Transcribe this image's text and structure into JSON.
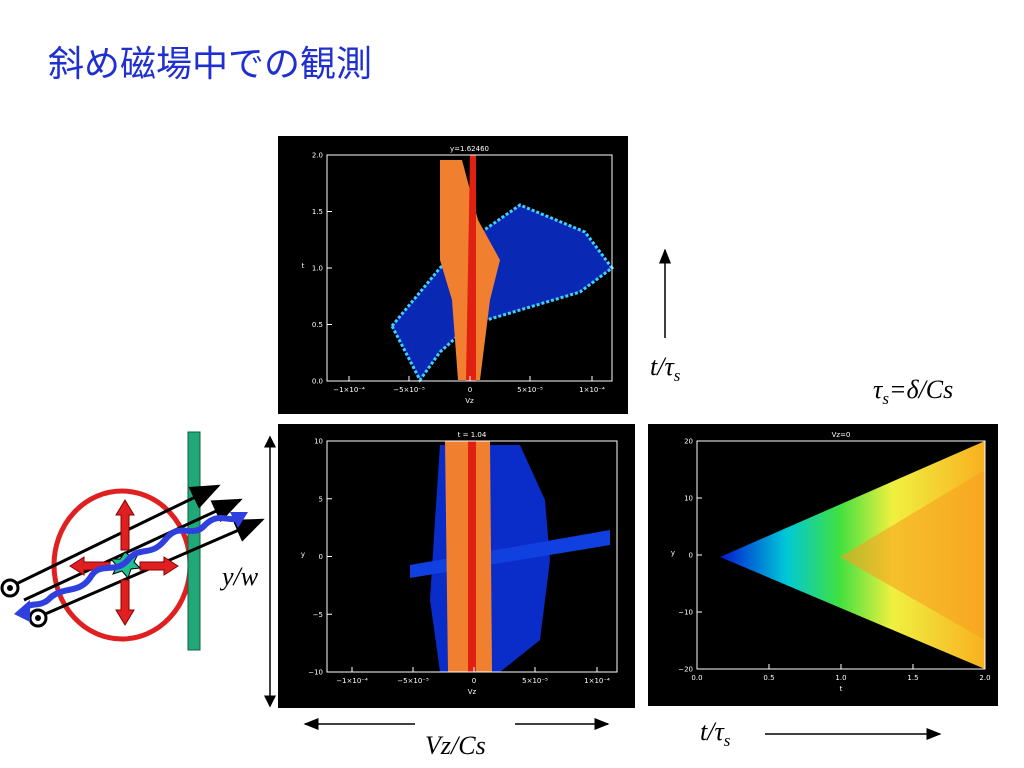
{
  "title": "斜め磁場中での観測",
  "plots": [
    {
      "title": "y=1.62460",
      "xlabel": "Vz",
      "ylabel": "t",
      "xticks": [
        "−1×10⁻⁴",
        "−5×10⁻⁵",
        "0",
        "5×10⁻⁵",
        "1×10⁻⁴"
      ],
      "yticks": [
        "0.0",
        "0.5",
        "1.0",
        "1.5",
        "2.0"
      ]
    },
    {
      "title": "t = 1.04",
      "xlabel": "Vz",
      "ylabel": "y",
      "xticks": [
        "−1×10⁻⁴",
        "−5×10⁻⁵",
        "0",
        "5×10⁻⁵",
        "1×10⁻⁴"
      ],
      "yticks": [
        "−10",
        "−5",
        "0",
        "5",
        "10"
      ]
    },
    {
      "title": "Vz=0",
      "xlabel": "t",
      "ylabel": "y",
      "xticks": [
        "0.0",
        "0.5",
        "1.0",
        "1.5",
        "2.0"
      ],
      "yticks": [
        "−20",
        "−10",
        "0",
        "10",
        "20"
      ]
    }
  ],
  "labels": {
    "time_vertical": [
      "t/τ",
      "s"
    ],
    "tau_definition": [
      "τ",
      "s",
      "=δ/Cs"
    ],
    "y_over_w": "y/w",
    "vz_over_cs": "Vz/Cs",
    "time_horizontal": [
      "t/τ",
      "s"
    ]
  }
}
